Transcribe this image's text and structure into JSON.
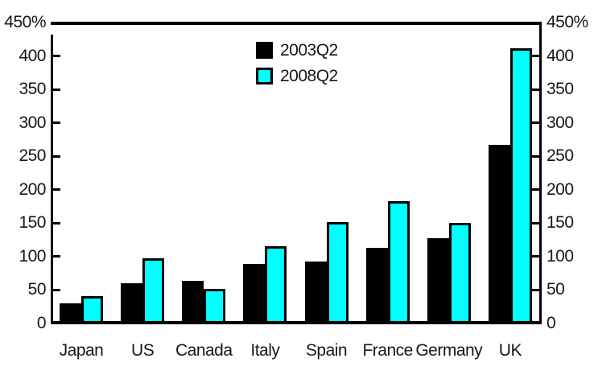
{
  "chart_data": {
    "type": "bar",
    "title": "",
    "categories": [
      "Japan",
      "US",
      "Canada",
      "Italy",
      "Spain",
      "France",
      "Germany",
      "UK"
    ],
    "series": [
      {
        "name": "2003Q2",
        "color": "#000000",
        "values": [
          30,
          60,
          64,
          89,
          93,
          113,
          128,
          267
        ]
      },
      {
        "name": "2008Q2",
        "color": "#00ffff",
        "values": [
          41,
          97,
          52,
          115,
          152,
          183,
          150,
          411
        ]
      }
    ],
    "xlabel": "",
    "ylabel": "",
    "y_unit": "%",
    "ylim": [
      0,
      450
    ],
    "y_tick_step": 50,
    "y_tick_labels_top_to_bottom": [
      "450%",
      "400",
      "350",
      "300",
      "250",
      "200",
      "150",
      "100",
      "50",
      "0"
    ],
    "axes": "mirrored y-axis on left and right, ticks pointing inward",
    "grid": false,
    "legend_position": "inside-top-center",
    "frame": {
      "top_line": true,
      "left_line": true,
      "right_line": true,
      "bottom_line_thick": true
    }
  },
  "colors": {
    "background": "#ffffff",
    "axis": "#000000",
    "text": "#16161f",
    "series_2003Q2": "#000000",
    "series_2008Q2": "#00ffff"
  }
}
